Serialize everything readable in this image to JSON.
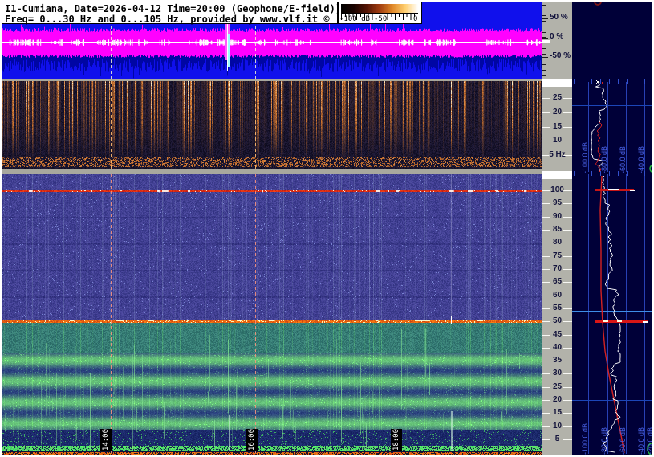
{
  "header": {
    "line1": "I1-Cumiana, Date=2026-04-12 Time=20:00 (Geophone/E-field))",
    "line2": "Freq= 0...30 Hz and 0...105 Hz, provided by www.vlf.it ©"
  },
  "legend": {
    "min_label": "-100 dB",
    "mid_label": "-50",
    "max_label": "0",
    "gradient": [
      "#000000",
      "#1a0400",
      "#551505",
      "#a03c10",
      "#e08828",
      "#ffcf70",
      "#ffffff"
    ]
  },
  "amplitude_scale": {
    "labels": [
      "50 %",
      "0 %",
      "-50 %"
    ]
  },
  "freq_scale_30": {
    "labels": [
      "25",
      "20",
      "15",
      "10",
      "5 Hz"
    ]
  },
  "freq_scale_105": {
    "labels": [
      "100",
      "95",
      "90",
      "85",
      "80",
      "75",
      "70",
      "65",
      "60",
      "55",
      "50",
      "45",
      "40",
      "35",
      "30",
      "25",
      "20",
      "15",
      "10",
      "5"
    ]
  },
  "spectrum_panel": {
    "upper_db_labels": [
      "-100.0 dB",
      "-80.0 dB",
      "-60.0 dB",
      "-40.0 dB"
    ],
    "lower_db_labels": [
      "-100.0 dB",
      "-80.0 dB",
      "-60.0 dB",
      "-40.0 dB",
      "-20.0 dB"
    ]
  },
  "time_axis": {
    "labels": [
      "14:00",
      "16:00",
      "18:00"
    ]
  },
  "colors": {
    "wave_bg": "#1010ec",
    "wave_trace": "#ff00ff",
    "wave_dark": "#0006a4",
    "panel_bg": "#000038",
    "grid": "#2840b4",
    "db_label": "#4a63e8",
    "strip": "#b2b2aa",
    "trace_white": "#f4f4f8",
    "trace_red": "#d42222",
    "sep": "#a8a89e"
  }
}
